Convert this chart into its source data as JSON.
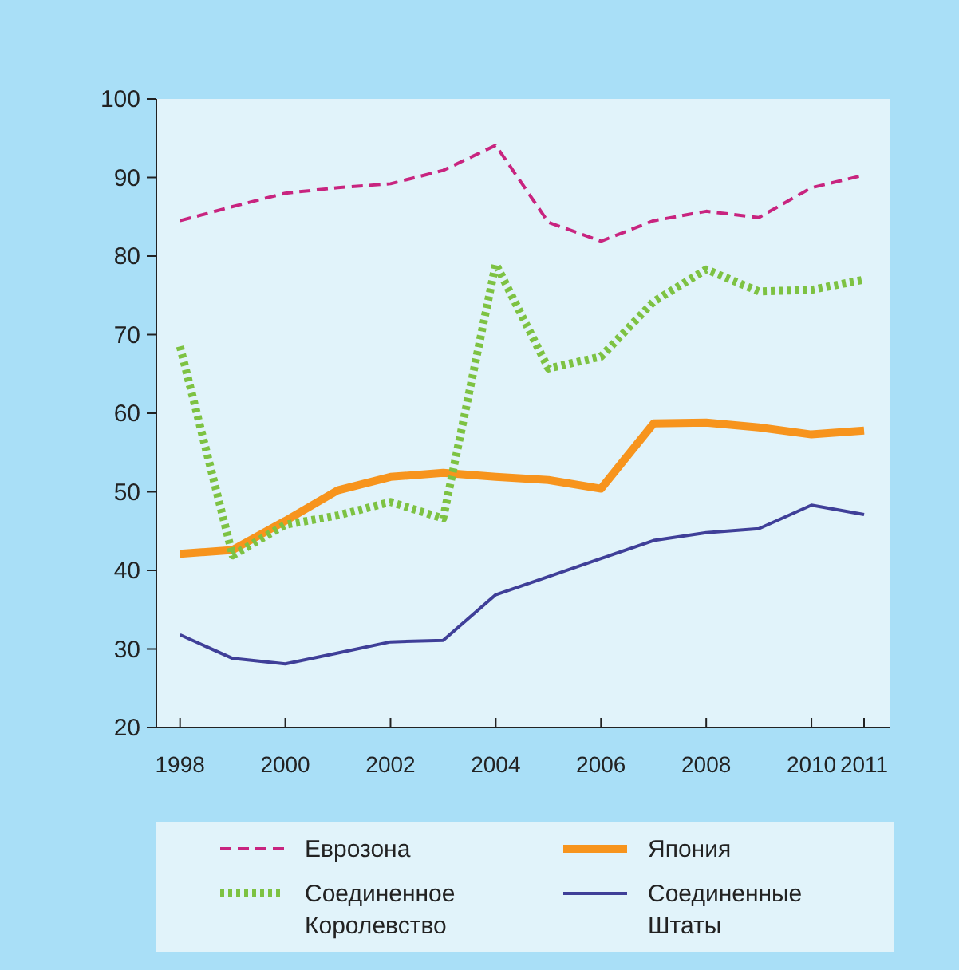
{
  "chart_data": {
    "type": "line",
    "x": [
      1998,
      1999,
      2000,
      2001,
      2002,
      2003,
      2004,
      2005,
      2006,
      2007,
      2008,
      2009,
      2010,
      2011
    ],
    "series": [
      {
        "name": "Еврозона",
        "color": "#c8247f",
        "line_style": "dashed",
        "values": [
          84.5,
          86.3,
          88,
          88.7,
          89.2,
          90.9,
          94.1,
          84.3,
          81.9,
          84.5,
          85.7,
          84.9,
          88.7,
          90.3
        ]
      },
      {
        "name": "Япония",
        "color": "#f7941d",
        "line_style": "solid",
        "values": [
          42.1,
          42.6,
          46.3,
          50.2,
          51.9,
          52.4,
          51.9,
          51.5,
          50.4,
          58.7,
          58.8,
          58.2,
          57.3,
          57.8
        ]
      },
      {
        "name": "Соединенное Королевство",
        "color": "#7dc242",
        "line_style": "dotted",
        "values": [
          68.5,
          41.9,
          45.8,
          47,
          48.7,
          46.6,
          79,
          65.7,
          67.2,
          74.2,
          78.3,
          75.5,
          75.7,
          77
        ]
      },
      {
        "name": "Соединенные Штаты",
        "color": "#3f3f98",
        "line_style": "solid",
        "values": [
          31.8,
          28.8,
          28.1,
          29.5,
          30.9,
          31.1,
          36.9,
          39.2,
          41.5,
          43.8,
          44.8,
          45.3,
          48.3,
          47.1
        ]
      }
    ],
    "xlim": [
      1997.55,
      2011.5
    ],
    "xticks": [
      1998,
      2000,
      2002,
      2004,
      2006,
      2008,
      2010,
      2011
    ],
    "ylim": [
      20,
      100
    ],
    "yticks": [
      20,
      30,
      40,
      50,
      60,
      70,
      80,
      90,
      100
    ],
    "grid": false,
    "legend": "bottom"
  }
}
